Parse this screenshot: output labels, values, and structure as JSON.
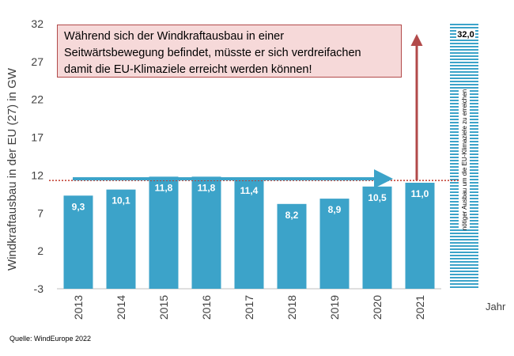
{
  "annotation": [
    "Während sich der Windkraftausbau  in einer",
    "Seitwärtsbewegung befindet,  müsste er sich verdreifachen",
    "damit die EU-Klimaziele erreicht werden können!"
  ],
  "source": "Quelle: WindEurope 2022",
  "chart_data": {
    "type": "bar",
    "title": "",
    "xlabel": "Jahr",
    "ylabel": "Windkraftausbau in der EU (27) in GW",
    "categories": [
      "2013",
      "2014",
      "2015",
      "2016",
      "2017",
      "2018",
      "2019",
      "2020",
      "2021"
    ],
    "values": [
      9.3,
      10.1,
      11.8,
      11.8,
      11.4,
      8.2,
      8.9,
      10.5,
      11.0
    ],
    "value_labels": [
      "9,3",
      "10,1",
      "11,8",
      "11,8",
      "11,4",
      "8,2",
      "8,9",
      "10,5",
      "11,0"
    ],
    "yticks": [
      -3,
      2,
      7,
      12,
      17,
      22,
      27,
      32
    ],
    "ylim": [
      -3,
      32
    ],
    "grid": false,
    "bar_color": "#3ca3c9",
    "target": {
      "value": 32.0,
      "label": "32,0",
      "note": "nötiger Ausbau um die EU-Klimaziele zu erreichen",
      "color": "#3ca3c9"
    },
    "reference_line": {
      "value": 11.3,
      "color": "#c0392b",
      "style": "dotted"
    },
    "trend_arrow_color": "#3ca3c9",
    "increase_arrow_color": "#b24a4a"
  }
}
